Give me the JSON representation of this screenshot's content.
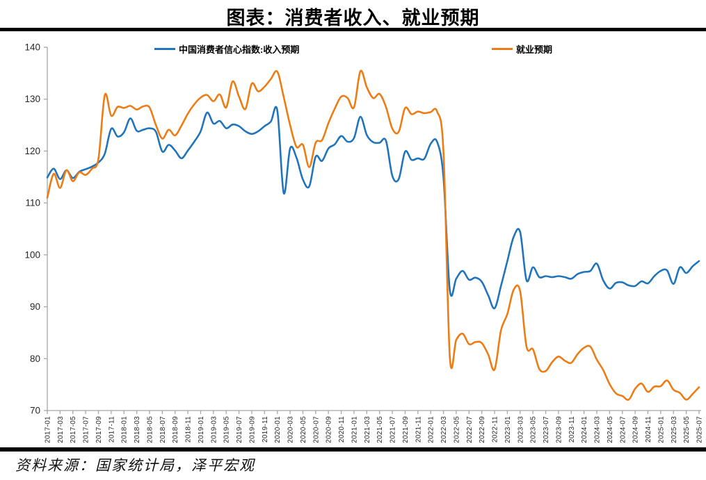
{
  "title": "图表：消费者收入、就业预期",
  "source": "资料来源：国家统计局，泽平宏观",
  "legend": [
    {
      "label": "中国消费者信心指数:收入预期",
      "color": "#1f74bb"
    },
    {
      "label": "就业预期",
      "color": "#ee7c15"
    }
  ],
  "chart_data": {
    "type": "line",
    "title": "图表：消费者收入、就业预期",
    "xlabel": "",
    "ylabel": "",
    "ylim": [
      70,
      140
    ],
    "yticks": [
      70,
      80,
      90,
      100,
      110,
      120,
      130,
      140
    ],
    "grid": false,
    "legend_position": "top",
    "x_tick_every": 2,
    "x": [
      "2017-01",
      "2017-02",
      "2017-03",
      "2017-04",
      "2017-05",
      "2017-06",
      "2017-07",
      "2017-08",
      "2017-09",
      "2017-10",
      "2017-11",
      "2017-12",
      "2018-01",
      "2018-02",
      "2018-03",
      "2018-04",
      "2018-05",
      "2018-06",
      "2018-07",
      "2018-08",
      "2018-09",
      "2018-10",
      "2018-11",
      "2018-12",
      "2019-01",
      "2019-02",
      "2019-03",
      "2019-04",
      "2019-05",
      "2019-06",
      "2019-07",
      "2019-08",
      "2019-09",
      "2019-10",
      "2019-11",
      "2019-12",
      "2020-01",
      "2020-02",
      "2020-03",
      "2020-04",
      "2020-05",
      "2020-06",
      "2020-07",
      "2020-08",
      "2020-09",
      "2020-10",
      "2020-11",
      "2020-12",
      "2021-01",
      "2021-02",
      "2021-03",
      "2021-04",
      "2021-05",
      "2021-06",
      "2021-07",
      "2021-08",
      "2021-09",
      "2021-10",
      "2021-11",
      "2021-12",
      "2022-01",
      "2022-02",
      "2022-03",
      "2022-04",
      "2022-05",
      "2022-06",
      "2022-07",
      "2022-08",
      "2022-09",
      "2022-10",
      "2022-11",
      "2022-12",
      "2023-01",
      "2023-02",
      "2023-03",
      "2023-04",
      "2023-05",
      "2023-06",
      "2023-07",
      "2023-08",
      "2023-09",
      "2023-10",
      "2023-11",
      "2023-12",
      "2024-01",
      "2024-02",
      "2024-03",
      "2024-04",
      "2024-05",
      "2024-06",
      "2024-07",
      "2024-08",
      "2024-09",
      "2024-10",
      "2024-11",
      "2024-12",
      "2025-01",
      "2025-02",
      "2025-03",
      "2025-04",
      "2025-05",
      "2025-06",
      "2025-07"
    ],
    "series": [
      {
        "name": "中国消费者信心指数:收入预期",
        "color": "#1f74bb",
        "values": [
          114.9,
          116.6,
          114.6,
          116.3,
          114.8,
          116.0,
          116.5,
          117.0,
          117.8,
          119.5,
          124.3,
          122.8,
          123.6,
          126.3,
          123.9,
          124.1,
          124.4,
          123.7,
          119.9,
          121.2,
          120.1,
          118.6,
          120.1,
          121.8,
          123.8,
          127.4,
          125.3,
          125.8,
          124.4,
          125.1,
          124.8,
          123.8,
          123.3,
          123.8,
          124.8,
          125.7,
          127.8,
          111.9,
          120.5,
          118.7,
          114.5,
          113.2,
          118.9,
          118.1,
          120.5,
          121.3,
          122.9,
          121.8,
          122.5,
          126.6,
          123.1,
          121.7,
          121.6,
          122.0,
          115.2,
          114.6,
          119.9,
          118.3,
          118.6,
          118.5,
          121.4,
          121.8,
          115.0,
          93.2,
          95.4,
          96.9,
          95.2,
          95.6,
          94.8,
          92.2,
          89.7,
          94.0,
          98.8,
          103.5,
          104.4,
          95.1,
          97.6,
          95.7,
          95.9,
          95.7,
          95.9,
          95.7,
          95.4,
          96.3,
          96.7,
          96.9,
          98.3,
          95.1,
          93.5,
          94.6,
          94.7,
          94.1,
          94.0,
          94.9,
          94.5,
          95.9,
          96.9,
          97.0,
          94.4,
          97.6,
          96.5,
          97.8,
          98.8
        ]
      },
      {
        "name": "就业预期",
        "color": "#ee7c15",
        "values": [
          111.0,
          115.6,
          112.9,
          116.3,
          114.2,
          115.9,
          115.4,
          116.6,
          118.5,
          130.8,
          126.8,
          128.5,
          128.3,
          128.7,
          128.0,
          128.6,
          128.4,
          125.0,
          122.4,
          124.1,
          123.0,
          124.9,
          127.2,
          129.0,
          130.3,
          130.8,
          129.6,
          130.9,
          128.4,
          133.4,
          130.5,
          128.1,
          133.0,
          131.5,
          132.4,
          133.9,
          135.3,
          130.4,
          125.0,
          120.8,
          121.2,
          116.9,
          121.6,
          122.1,
          125.4,
          128.2,
          130.5,
          130.2,
          128.4,
          135.4,
          132.3,
          130.2,
          131.0,
          128.5,
          124.3,
          123.7,
          128.3,
          127.1,
          127.6,
          127.3,
          127.5,
          127.6,
          120.0,
          80.3,
          83.6,
          84.8,
          82.8,
          83.2,
          83.0,
          80.8,
          77.9,
          85.4,
          88.6,
          93.3,
          93.0,
          82.3,
          81.8,
          78.0,
          77.6,
          79.3,
          80.4,
          79.6,
          79.2,
          80.9,
          82.1,
          82.3,
          79.8,
          77.8,
          75.1,
          73.3,
          72.8,
          72.1,
          74.2,
          75.2,
          73.6,
          74.6,
          74.7,
          75.8,
          74.0,
          73.4,
          72.1,
          73.2,
          74.5
        ]
      }
    ]
  }
}
